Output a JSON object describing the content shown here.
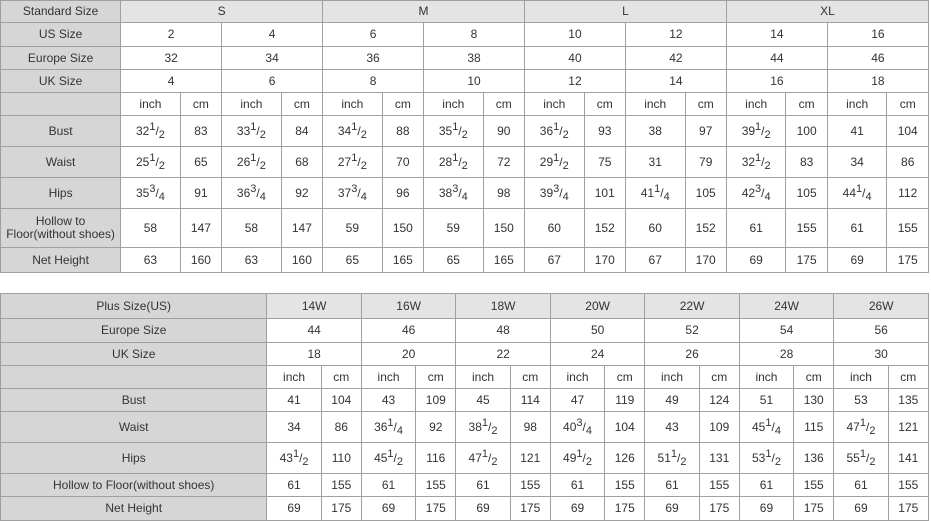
{
  "standard_table": {
    "header_label": "Standard Size",
    "size_groups": [
      "S",
      "M",
      "L",
      "XL"
    ],
    "rows": [
      {
        "label": "US Size",
        "values": [
          "2",
          "4",
          "6",
          "8",
          "10",
          "12",
          "14",
          "16"
        ]
      },
      {
        "label": "Europe Size",
        "values": [
          "32",
          "34",
          "36",
          "38",
          "40",
          "42",
          "44",
          "46"
        ]
      },
      {
        "label": "UK Size",
        "values": [
          "4",
          "6",
          "8",
          "10",
          "12",
          "14",
          "16",
          "18"
        ]
      }
    ],
    "unit_labels": [
      "inch",
      "cm"
    ],
    "measurements": [
      {
        "label": "Bust",
        "values": [
          "32 1/2",
          "83",
          "33 1/2",
          "84",
          "34 1/2",
          "88",
          "35 1/2",
          "90",
          "36 1/2",
          "93",
          "38",
          "97",
          "39 1/2",
          "100",
          "41",
          "104"
        ]
      },
      {
        "label": "Waist",
        "values": [
          "25 1/2",
          "65",
          "26 1/2",
          "68",
          "27 1/2",
          "70",
          "28 1/2",
          "72",
          "29 1/2",
          "75",
          "31",
          "79",
          "32 1/2",
          "83",
          "34",
          "86"
        ]
      },
      {
        "label": "Hips",
        "values": [
          "35 3/4",
          "91",
          "36 3/4",
          "92",
          "37 3/4",
          "96",
          "38 3/4",
          "98",
          "39 3/4",
          "101",
          "41 1/4",
          "105",
          "42 3/4",
          "105",
          "44 1/4",
          "112"
        ]
      },
      {
        "label": "Hollow to Floor(without shoes)",
        "values": [
          "58",
          "147",
          "58",
          "147",
          "59",
          "150",
          "59",
          "150",
          "60",
          "152",
          "60",
          "152",
          "61",
          "155",
          "61",
          "155"
        ]
      },
      {
        "label": "Net Height",
        "values": [
          "63",
          "160",
          "63",
          "160",
          "65",
          "165",
          "65",
          "165",
          "67",
          "170",
          "67",
          "170",
          "69",
          "175",
          "69",
          "175"
        ]
      }
    ]
  },
  "plus_table": {
    "header_label": "Plus Size(US)",
    "sizes": [
      "14W",
      "16W",
      "18W",
      "20W",
      "22W",
      "24W",
      "26W"
    ],
    "rows": [
      {
        "label": "Europe Size",
        "values": [
          "44",
          "46",
          "48",
          "50",
          "52",
          "54",
          "56"
        ]
      },
      {
        "label": "UK Size",
        "values": [
          "18",
          "20",
          "22",
          "24",
          "26",
          "28",
          "30"
        ]
      }
    ],
    "unit_labels": [
      "inch",
      "cm"
    ],
    "measurements": [
      {
        "label": "Bust",
        "values": [
          "41",
          "104",
          "43",
          "109",
          "45",
          "114",
          "47",
          "119",
          "49",
          "124",
          "51",
          "130",
          "53",
          "135"
        ]
      },
      {
        "label": "Waist",
        "values": [
          "34",
          "86",
          "36 1/4",
          "92",
          "38 1/2",
          "98",
          "40 3/4",
          "104",
          "43",
          "109",
          "45 1/4",
          "115",
          "47 1/2",
          "121"
        ]
      },
      {
        "label": "Hips",
        "values": [
          "43 1/2",
          "110",
          "45 1/2",
          "116",
          "47 1/2",
          "121",
          "49 1/2",
          "126",
          "51 1/2",
          "131",
          "53 1/2",
          "136",
          "55 1/2",
          "141"
        ]
      },
      {
        "label": "Hollow to Floor(without shoes)",
        "values": [
          "61",
          "155",
          "61",
          "155",
          "61",
          "155",
          "61",
          "155",
          "61",
          "155",
          "61",
          "155",
          "61",
          "155"
        ]
      },
      {
        "label": "Net Height",
        "values": [
          "69",
          "175",
          "69",
          "175",
          "69",
          "175",
          "69",
          "175",
          "69",
          "175",
          "69",
          "175",
          "69",
          "175"
        ]
      }
    ]
  }
}
